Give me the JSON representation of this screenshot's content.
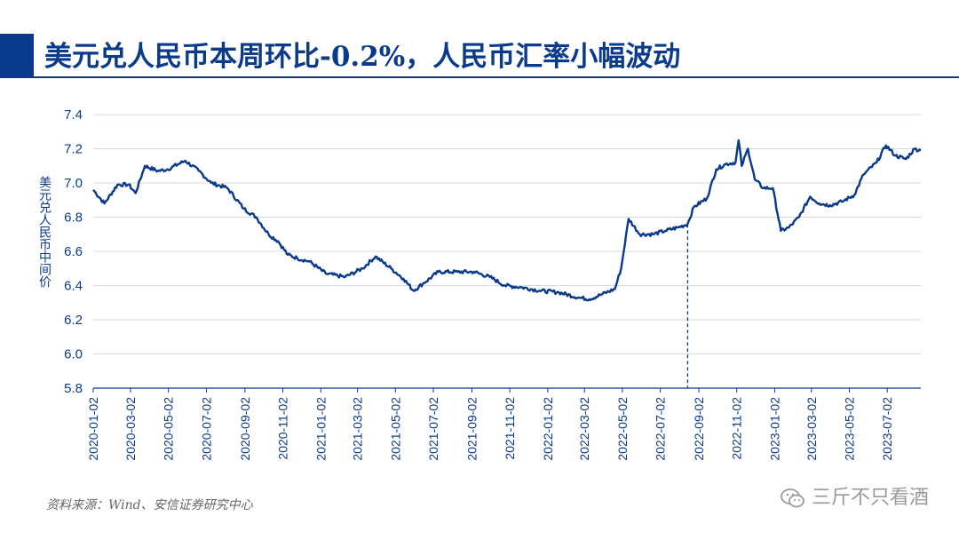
{
  "header": {
    "title": "美元兑人民币本周环比-0.2%，人民币汇率小幅波动",
    "accent_color": "#0a3a8c"
  },
  "footer": {
    "source": "资料来源：Wind、安信证券研究中心",
    "watermark": "三斤不只看酒",
    "watermark_icon": "wechat-icon"
  },
  "chart_data": {
    "type": "line",
    "title": "",
    "xlabel": "",
    "ylabel": "美元兑人民币中间价",
    "ylim": [
      5.8,
      7.4
    ],
    "yticks": [
      "7.4",
      "7.2",
      "7.0",
      "6.8",
      "6.6",
      "6.4",
      "6.2",
      "6.0",
      "5.8"
    ],
    "xticks": [
      "2020-01-02",
      "2020-03-02",
      "2020-05-02",
      "2020-07-02",
      "2020-09-02",
      "2020-11-02",
      "2021-01-02",
      "2021-03-02",
      "2021-05-02",
      "2021-07-02",
      "2021-09-02",
      "2021-11-02",
      "2022-01-02",
      "2022-03-02",
      "2022-05-02",
      "2022-07-02",
      "2022-09-02",
      "2022-11-02",
      "2023-01-02",
      "2023-03-02",
      "2023-05-02",
      "2023-07-02"
    ],
    "x_range": [
      "2020-01-02",
      "2023-08-25"
    ],
    "grid": true,
    "line_color": "#0a3a8c",
    "marker_line": {
      "date": "2022-08-15",
      "style": "dashed"
    },
    "series": [
      {
        "values": [
          [
            "2020-01-02",
            6.96
          ],
          [
            "2020-01-20",
            6.88
          ],
          [
            "2020-02-10",
            6.99
          ],
          [
            "2020-02-28",
            6.99
          ],
          [
            "2020-03-10",
            6.94
          ],
          [
            "2020-03-25",
            7.1
          ],
          [
            "2020-04-15",
            7.07
          ],
          [
            "2020-05-01",
            7.08
          ],
          [
            "2020-05-29",
            7.13
          ],
          [
            "2020-06-20",
            7.07
          ],
          [
            "2020-07-10",
            7.0
          ],
          [
            "2020-08-05",
            6.97
          ],
          [
            "2020-08-31",
            6.85
          ],
          [
            "2020-09-20",
            6.8
          ],
          [
            "2020-10-10",
            6.7
          ],
          [
            "2020-10-25",
            6.66
          ],
          [
            "2020-11-10",
            6.58
          ],
          [
            "2020-11-25",
            6.56
          ],
          [
            "2020-12-15",
            6.54
          ],
          [
            "2021-01-10",
            6.47
          ],
          [
            "2021-02-10",
            6.45
          ],
          [
            "2021-03-10",
            6.5
          ],
          [
            "2021-03-31",
            6.57
          ],
          [
            "2021-04-25",
            6.5
          ],
          [
            "2021-05-15",
            6.44
          ],
          [
            "2021-05-31",
            6.37
          ],
          [
            "2021-06-15",
            6.41
          ],
          [
            "2021-07-10",
            6.48
          ],
          [
            "2021-08-10",
            6.48
          ],
          [
            "2021-09-05",
            6.48
          ],
          [
            "2021-10-01",
            6.45
          ],
          [
            "2021-10-25",
            6.4
          ],
          [
            "2021-11-20",
            6.39
          ],
          [
            "2021-12-20",
            6.37
          ],
          [
            "2022-01-20",
            6.36
          ],
          [
            "2022-02-20",
            6.33
          ],
          [
            "2022-03-10",
            6.32
          ],
          [
            "2022-03-31",
            6.35
          ],
          [
            "2022-04-20",
            6.38
          ],
          [
            "2022-04-30",
            6.5
          ],
          [
            "2022-05-12",
            6.79
          ],
          [
            "2022-05-30",
            6.7
          ],
          [
            "2022-06-20",
            6.7
          ],
          [
            "2022-07-10",
            6.72
          ],
          [
            "2022-07-31",
            6.74
          ],
          [
            "2022-08-15",
            6.76
          ],
          [
            "2022-08-25",
            6.86
          ],
          [
            "2022-09-15",
            6.91
          ],
          [
            "2022-09-30",
            7.08
          ],
          [
            "2022-10-15",
            7.11
          ],
          [
            "2022-10-31",
            7.12
          ],
          [
            "2022-11-05",
            7.25
          ],
          [
            "2022-11-10",
            7.1
          ],
          [
            "2022-11-20",
            7.2
          ],
          [
            "2022-12-01",
            7.02
          ],
          [
            "2022-12-15",
            6.97
          ],
          [
            "2022-12-30",
            6.97
          ],
          [
            "2023-01-12",
            6.72
          ],
          [
            "2023-01-25",
            6.74
          ],
          [
            "2023-02-10",
            6.8
          ],
          [
            "2023-02-28",
            6.92
          ],
          [
            "2023-03-15",
            6.88
          ],
          [
            "2023-04-01",
            6.87
          ],
          [
            "2023-04-20",
            6.89
          ],
          [
            "2023-05-10",
            6.93
          ],
          [
            "2023-05-25",
            7.05
          ],
          [
            "2023-06-15",
            7.12
          ],
          [
            "2023-06-30",
            7.22
          ],
          [
            "2023-07-15",
            7.16
          ],
          [
            "2023-08-01",
            7.14
          ],
          [
            "2023-08-15",
            7.2
          ],
          [
            "2023-08-25",
            7.19
          ]
        ]
      }
    ]
  }
}
